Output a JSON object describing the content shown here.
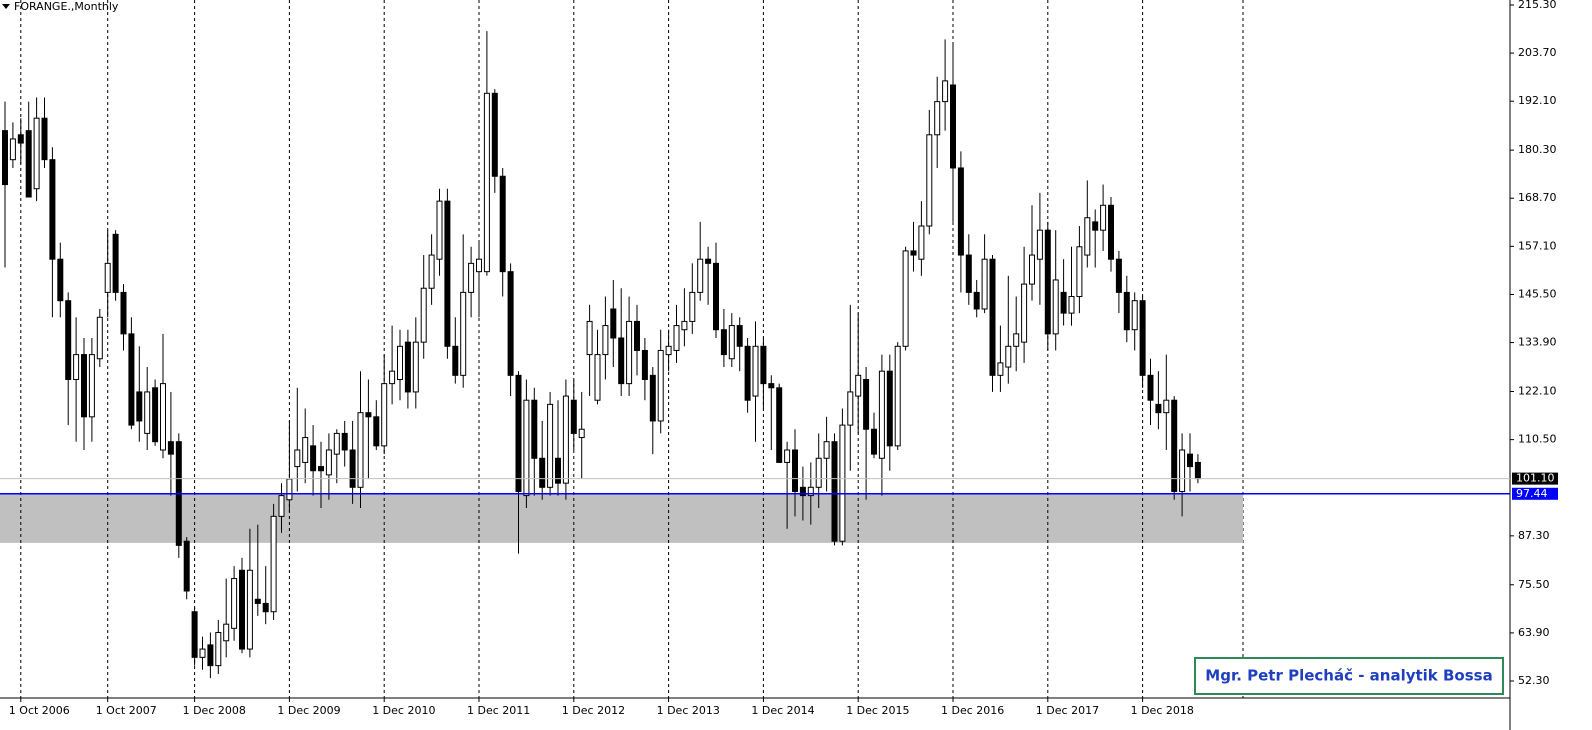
{
  "chart_data": {
    "type": "candlestick",
    "title": "FORANGE.,Monthly",
    "annotation": "Mgr. Petr Plecháč - analytik Bossa",
    "categories": [
      null,
      null,
      "1 Oct 2006",
      null,
      null,
      null,
      null,
      null,
      null,
      null,
      null,
      null,
      null,
      "1 Oct 2007",
      null,
      null,
      null,
      null,
      null,
      null,
      null,
      null,
      null,
      null,
      "1 Dec 2008",
      null,
      null,
      null,
      null,
      null,
      null,
      null,
      null,
      null,
      null,
      null,
      "1 Dec 2009",
      null,
      null,
      null,
      null,
      null,
      null,
      null,
      null,
      null,
      null,
      null,
      "1 Dec 2010",
      null,
      null,
      null,
      null,
      null,
      null,
      null,
      null,
      null,
      null,
      null,
      "1 Dec 2011",
      null,
      null,
      null,
      null,
      null,
      null,
      null,
      null,
      null,
      null,
      null,
      "1 Dec 2012",
      null,
      null,
      null,
      null,
      null,
      null,
      null,
      null,
      null,
      null,
      null,
      "1 Dec 2013",
      null,
      null,
      null,
      null,
      null,
      null,
      null,
      null,
      null,
      null,
      null,
      "1 Dec 2014",
      null,
      null,
      null,
      null,
      null,
      null,
      null,
      null,
      null,
      null,
      null,
      "1 Dec 2015",
      null,
      null,
      null,
      null,
      null,
      null,
      null,
      null,
      null,
      null,
      null,
      "1 Dec 2016",
      null,
      null,
      null,
      null,
      null,
      null,
      null,
      null,
      null,
      null,
      null,
      "1 Dec 2017",
      null,
      null,
      null,
      null,
      null,
      null,
      null,
      null,
      null,
      null,
      null,
      "1 Dec 2018",
      null,
      null,
      null,
      null,
      null,
      null,
      null
    ],
    "open": [
      185,
      178,
      184,
      185,
      171,
      188,
      178,
      154,
      144,
      125,
      131,
      116,
      130,
      146,
      160,
      146,
      136,
      122,
      112,
      123,
      108,
      110,
      110,
      86,
      69,
      58,
      61,
      56,
      62,
      65,
      79,
      60,
      72,
      71,
      69,
      92,
      96,
      104,
      105,
      109,
      104,
      102,
      107,
      112,
      108,
      99,
      117,
      116,
      109,
      124,
      125,
      134,
      122,
      134,
      147,
      154,
      168,
      133,
      126,
      146,
      151,
      151,
      194,
      174,
      151,
      126,
      97,
      120,
      106,
      99,
      106,
      100,
      120,
      111,
      131,
      120,
      131,
      142,
      135,
      124,
      139,
      132,
      126,
      115,
      131,
      132,
      137,
      139,
      146,
      154,
      153,
      137,
      130,
      138,
      133,
      121,
      133,
      124,
      123,
      105,
      108,
      99,
      97,
      99,
      106,
      110,
      86,
      114,
      121,
      125,
      113,
      106,
      127,
      109,
      133,
      156,
      154,
      162,
      184,
      192,
      196,
      176,
      155,
      146,
      142,
      154,
      126,
      128,
      133,
      134,
      148,
      154,
      161,
      136,
      146,
      141,
      145,
      155,
      163,
      161,
      167,
      154,
      146,
      137,
      144,
      126,
      119,
      117,
      120,
      98,
      107,
      105
    ],
    "high": [
      192,
      187,
      188,
      192,
      193,
      193,
      181,
      158,
      146,
      140,
      135,
      135,
      142,
      161,
      161,
      148,
      140,
      133,
      128,
      125,
      136,
      122,
      112,
      87,
      70,
      63,
      64,
      67,
      77,
      80,
      82,
      89,
      90,
      80,
      95,
      100,
      115,
      123,
      118,
      114,
      110,
      112,
      113,
      115,
      115,
      127,
      125,
      120,
      131,
      138,
      137,
      137,
      140,
      155,
      160,
      171,
      171,
      140,
      160,
      157,
      158,
      209,
      195,
      176,
      153,
      127,
      125,
      123,
      115,
      122,
      120,
      125,
      125,
      122,
      143,
      137,
      145,
      149,
      147,
      145,
      143,
      135,
      128,
      137,
      137,
      143,
      147,
      153,
      163,
      157,
      158,
      142,
      141,
      140,
      135,
      139,
      135,
      126,
      124,
      110,
      113,
      104,
      105,
      112,
      116,
      112,
      118,
      143,
      141,
      128,
      117,
      131,
      131,
      134,
      157,
      163,
      168,
      190,
      198,
      207,
      206,
      180,
      160,
      149,
      160,
      155,
      138,
      150,
      145,
      157,
      167,
      170,
      163,
      161,
      154,
      157,
      162,
      173,
      166,
      172,
      169,
      156,
      150,
      146,
      145,
      130,
      127,
      131,
      121,
      112,
      112,
      107
    ],
    "low": [
      152,
      176,
      177,
      169,
      168,
      176,
      140,
      140,
      114,
      110,
      108,
      110,
      128,
      140,
      144,
      132,
      113,
      110,
      108,
      109,
      106,
      97,
      82,
      72,
      56,
      55,
      53,
      54,
      58,
      62,
      59,
      58,
      68,
      66,
      67,
      88,
      93,
      98,
      100,
      97,
      94,
      96,
      100,
      104,
      95,
      94,
      101,
      108,
      107,
      119,
      120,
      118,
      118,
      130,
      143,
      150,
      130,
      124,
      123,
      140,
      140,
      150,
      170,
      145,
      121,
      83,
      94,
      97,
      96,
      97,
      97,
      96,
      108,
      101,
      121,
      119,
      125,
      128,
      121,
      121,
      126,
      120,
      107,
      112,
      127,
      129,
      133,
      136,
      144,
      143,
      135,
      128,
      128,
      127,
      117,
      110,
      118,
      108,
      105,
      89,
      92,
      91,
      90,
      94,
      98,
      85,
      85,
      103,
      112,
      96,
      106,
      97,
      103,
      108,
      132,
      151,
      150,
      160,
      176,
      185,
      163,
      146,
      143,
      140,
      141,
      122,
      122,
      124,
      127,
      129,
      144,
      143,
      132,
      132,
      138,
      138,
      141,
      152,
      152,
      156,
      151,
      141,
      134,
      132,
      123,
      114,
      113,
      108,
      96,
      92,
      98,
      100
    ],
    "close": [
      172,
      183,
      182,
      169,
      188,
      178,
      154,
      144,
      125,
      131,
      116,
      131,
      140,
      153,
      146,
      136,
      114,
      115,
      122,
      110,
      124,
      107,
      85,
      74,
      58,
      60,
      56,
      64,
      66,
      77,
      60,
      79,
      71,
      69,
      92,
      97,
      101,
      108,
      111,
      103,
      103,
      108,
      112,
      108,
      99,
      117,
      116,
      109,
      124,
      127,
      133,
      122,
      134,
      147,
      155,
      168,
      133,
      126,
      146,
      153,
      154,
      194,
      174,
      151,
      126,
      98,
      120,
      106,
      99,
      119,
      100,
      121,
      112,
      113,
      139,
      131,
      138,
      135,
      124,
      139,
      132,
      125,
      115,
      132,
      133,
      138,
      139,
      146,
      154,
      153,
      137,
      131,
      138,
      133,
      120,
      133,
      124,
      123,
      105,
      108,
      98,
      97,
      99,
      106,
      110,
      86,
      114,
      122,
      126,
      113,
      107,
      127,
      109,
      133,
      156,
      155,
      162,
      184,
      192,
      197,
      176,
      155,
      146,
      142,
      154,
      126,
      129,
      133,
      136,
      148,
      155,
      161,
      136,
      149,
      141,
      145,
      157,
      164,
      161,
      167,
      154,
      146,
      137,
      144,
      126,
      120,
      117,
      120,
      98,
      108,
      104,
      101.1
    ],
    "up_color": "#ffffff",
    "down_color": "#000000",
    "ylim": [
      48.2,
      216.5
    ],
    "yticks": [
      {
        "value": 52.3,
        "label": "52.30"
      },
      {
        "value": 63.9,
        "label": "63.90"
      },
      {
        "value": 75.5,
        "label": "75.50"
      },
      {
        "value": 87.3,
        "label": "87.30"
      },
      {
        "value": 110.5,
        "label": "110.50"
      },
      {
        "value": 122.1,
        "label": "122.10"
      },
      {
        "value": 133.9,
        "label": "133.90"
      },
      {
        "value": 145.5,
        "label": "145.50"
      },
      {
        "value": 157.1,
        "label": "157.10"
      },
      {
        "value": 168.7,
        "label": "168.70"
      },
      {
        "value": 180.3,
        "label": "180.30"
      },
      {
        "value": 192.1,
        "label": "192.10"
      },
      {
        "value": 203.7,
        "label": "203.70"
      },
      {
        "value": 215.3,
        "label": "215.30"
      }
    ],
    "current_price": {
      "value": 101.1,
      "label": "101.10"
    },
    "support_line": 97.44,
    "support_line_color": "#0000ff",
    "support_zone_low": 85.6,
    "support_zone_color": "#c0c0c0"
  }
}
